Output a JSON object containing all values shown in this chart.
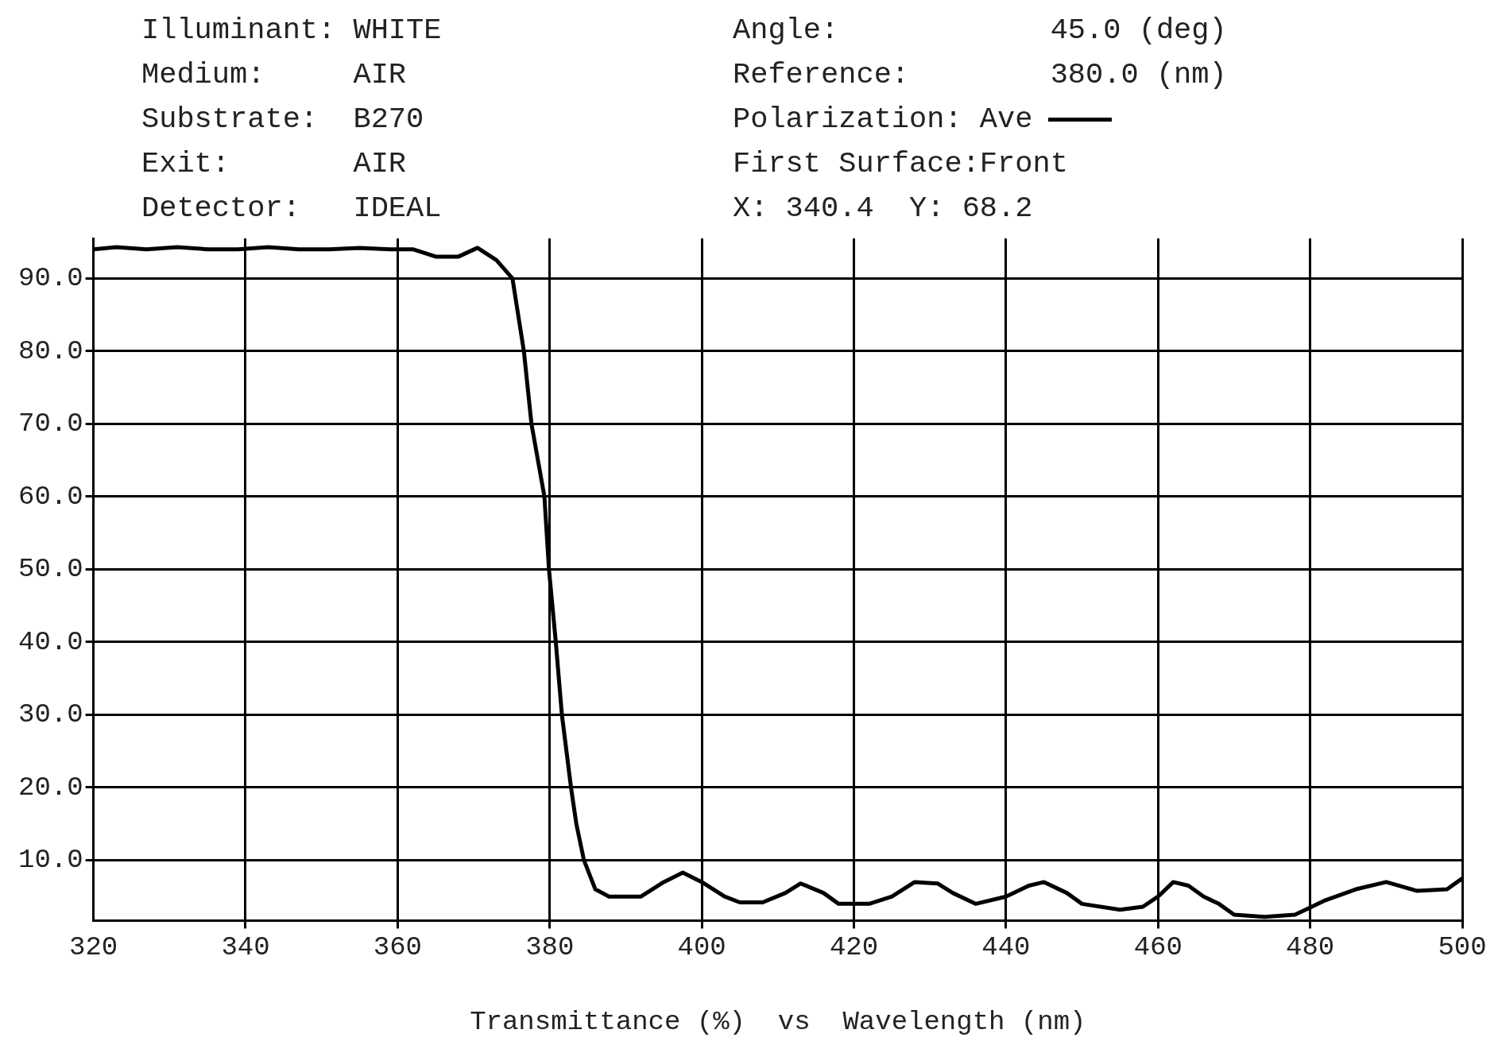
{
  "chart_data": {
    "type": "line",
    "xlabel": "Transmittance (%)  vs  Wavelength (nm)",
    "annotations": [
      "Illuminant: WHITE",
      "Medium:     AIR",
      "Substrate:  B270",
      "Exit:       AIR",
      "Detector:   IDEAL",
      "Angle:            45.0 (deg)",
      "Reference:        380.0 (nm)",
      "Polarization:",
      "First Surface:Front",
      "X: 340.4  Y: 68.2"
    ],
    "legend": "top",
    "grid": true,
    "marker": "none",
    "line_style": "solid",
    "xlim": [
      320,
      500
    ],
    "xticks": [
      320,
      340,
      360,
      380,
      400,
      420,
      440,
      460,
      480,
      500
    ],
    "ylim": [
      1.7,
      95.5
    ],
    "yticks": [
      {
        "value": 10,
        "label": "10.0"
      },
      {
        "value": 20,
        "label": "20.0"
      },
      {
        "value": 30,
        "label": "30.0"
      },
      {
        "value": 40,
        "label": "40.0"
      },
      {
        "value": 50,
        "label": "50.0"
      },
      {
        "value": 60,
        "label": "60.0"
      },
      {
        "value": 70,
        "label": "70.0"
      },
      {
        "value": 80,
        "label": "80.0"
      },
      {
        "value": 90,
        "label": "90.0"
      }
    ],
    "series": [
      {
        "name": "Ave",
        "color": "#000000",
        "x": [
          320,
          323,
          327,
          331,
          335,
          339,
          343,
          347,
          351,
          355,
          359,
          362,
          365,
          368,
          370.5,
          373,
          375.1,
          376.6,
          377.6,
          379.3,
          379.9,
          380.8,
          381.6,
          382.8,
          383.5,
          384.5,
          386,
          387.8,
          392,
          395,
          397.5,
          400,
          403,
          405,
          408,
          411,
          413,
          416,
          418,
          422,
          425,
          428,
          431,
          433,
          436,
          440,
          443,
          445,
          448,
          450,
          455,
          458,
          460,
          462,
          464,
          466,
          468,
          470,
          474,
          478,
          480,
          482,
          486,
          490,
          494,
          498,
          500
        ],
        "values": [
          94,
          94.3,
          94,
          94.3,
          94,
          94,
          94.3,
          94,
          94,
          94.2,
          94,
          94,
          93,
          93,
          94.2,
          92.5,
          90,
          80,
          70,
          60,
          50,
          40,
          30,
          20,
          15,
          10,
          6,
          5,
          5,
          7,
          8.3,
          7,
          5,
          4.2,
          4.2,
          5.5,
          6.8,
          5.5,
          4,
          4,
          5,
          7,
          6.8,
          5.5,
          4,
          5,
          6.5,
          7,
          5.5,
          4,
          3.2,
          3.6,
          5,
          7,
          6.5,
          5,
          4,
          2.5,
          2.2,
          2.5,
          3.5,
          4.5,
          6,
          7,
          5.8,
          6,
          7.5
        ]
      }
    ]
  }
}
